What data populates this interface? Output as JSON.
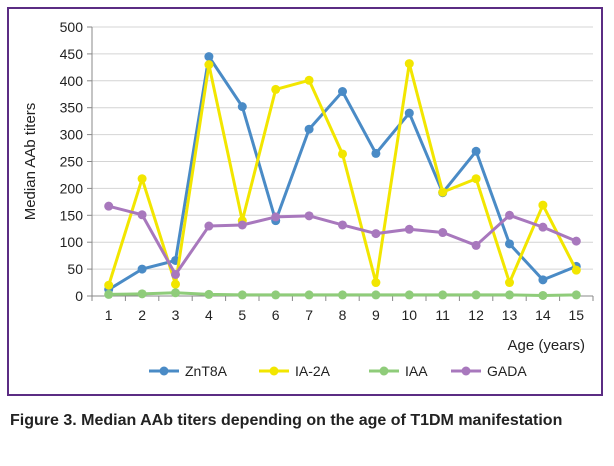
{
  "caption": "Figure 3. Median AAb titers depending on the age of T1DM manifestation",
  "chart_data": {
    "type": "line",
    "xlabel": "Age (years)",
    "ylabel": "Median AAb titers",
    "x": [
      1,
      2,
      3,
      4,
      5,
      6,
      7,
      8,
      9,
      10,
      11,
      12,
      13,
      14,
      15
    ],
    "ylim": [
      0,
      500
    ],
    "yticks": [
      0,
      50,
      100,
      150,
      200,
      250,
      300,
      350,
      400,
      450,
      500
    ],
    "grid": "horizontal",
    "legend_position": "bottom",
    "series": [
      {
        "name": "ZnT8A",
        "color": "#4a8bc6",
        "values": [
          12,
          50,
          66,
          445,
          352,
          140,
          310,
          380,
          265,
          340,
          192,
          269,
          97,
          30,
          55
        ]
      },
      {
        "name": "IA-2A",
        "color": "#f2e600",
        "values": [
          20,
          218,
          22,
          430,
          140,
          384,
          401,
          264,
          25,
          432,
          193,
          218,
          25,
          169,
          48
        ]
      },
      {
        "name": "IAA",
        "color": "#8fcc7a",
        "values": [
          3,
          4,
          6,
          3,
          2,
          2,
          2,
          2,
          2,
          2,
          2,
          2,
          2,
          1,
          2
        ]
      },
      {
        "name": "GADA",
        "color": "#a878bd",
        "values": [
          167,
          151,
          40,
          130,
          132,
          147,
          149,
          132,
          116,
          124,
          118,
          94,
          150,
          128,
          102
        ]
      }
    ]
  }
}
